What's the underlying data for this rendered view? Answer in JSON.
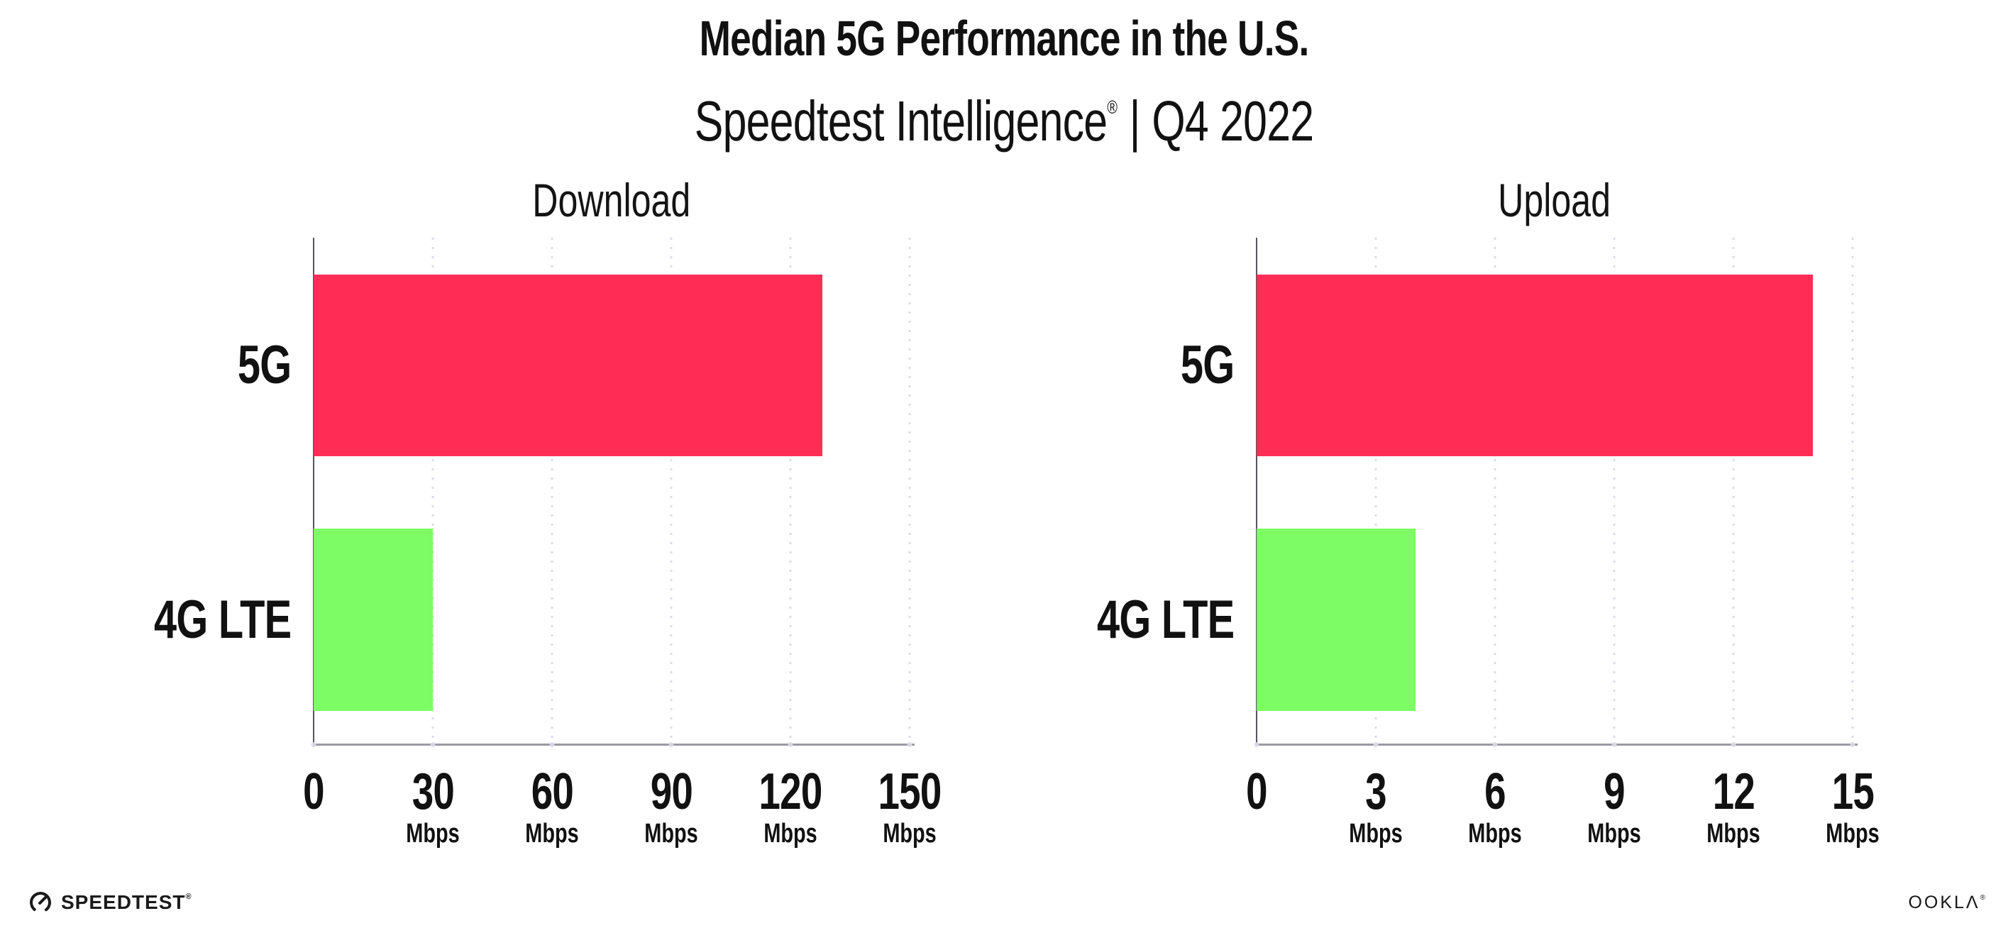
{
  "header": {
    "title": "Median 5G Performance in the U.S.",
    "subtitle_brand": "Speedtest Intelligence",
    "subtitle_reg": "®",
    "subtitle_sep": "|",
    "subtitle_period": "Q4 2022"
  },
  "chart_data": [
    {
      "type": "bar",
      "orientation": "horizontal",
      "title": "Download",
      "categories": [
        "5G",
        "4G LTE"
      ],
      "values": [
        128,
        30
      ],
      "unit": "Mbps",
      "xlim": [
        0,
        150
      ],
      "ticks": [
        0,
        30,
        60,
        90,
        120,
        150
      ],
      "bar_colors": [
        "#ff2d55",
        "#7dfc65"
      ],
      "legend": "none",
      "grid": "vertical-dotted"
    },
    {
      "type": "bar",
      "orientation": "horizontal",
      "title": "Upload",
      "categories": [
        "5G",
        "4G LTE"
      ],
      "values": [
        14,
        4
      ],
      "unit": "Mbps",
      "xlim": [
        0,
        15
      ],
      "ticks": [
        0,
        3,
        6,
        9,
        12,
        15
      ],
      "bar_colors": [
        "#ff2d55",
        "#7dfc65"
      ],
      "legend": "none",
      "grid": "vertical-dotted"
    }
  ],
  "footer": {
    "speedtest_label": "SPEEDTEST",
    "speedtest_reg": "®",
    "ookla_label": "OOKLΛ",
    "ookla_reg": "®"
  },
  "colors": {
    "bar_5g": "#ff2d55",
    "bar_4g_lte": "#7dfc65",
    "gridline": "#dcdce8",
    "axis_line": "#9a9aa2",
    "spine": "#55555c",
    "text": "#111111"
  }
}
